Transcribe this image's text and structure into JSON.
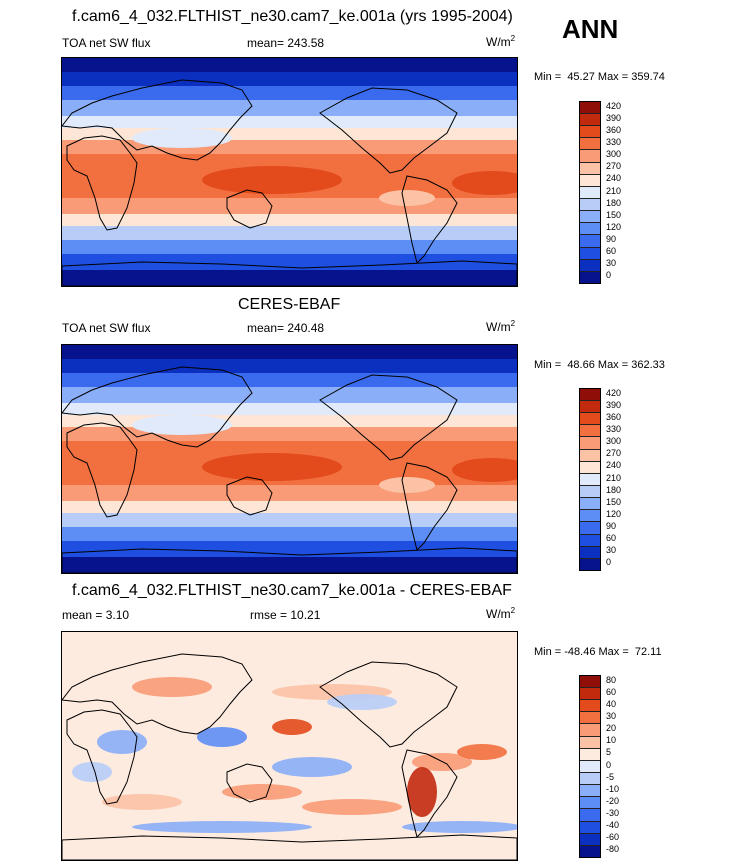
{
  "figure": {
    "season_label": "ANN",
    "units_base": "W/m",
    "units_exp": "2"
  },
  "panels": [
    {
      "title": "f.cam6_4_032.FLTHIST_ne30.cam7_ke.001a (yrs 1995-2004)",
      "left_label": "TOA net SW flux",
      "center_label": "mean= 243.58",
      "stats": "Min =  45.27 Max = 359.74",
      "levels": [
        "0",
        "30",
        "60",
        "90",
        "120",
        "150",
        "180",
        "210",
        "240",
        "270",
        "300",
        "330",
        "360",
        "390",
        "420"
      ],
      "colors": [
        "#06138c",
        "#0b2fbf",
        "#1f4fe0",
        "#3a6bef",
        "#5d8ef5",
        "#8aaef7",
        "#b7cdf8",
        "#e0eafb",
        "#fde6d6",
        "#fbc2a6",
        "#f89b76",
        "#f2703f",
        "#e34a1c",
        "#c22a0e",
        "#8f0f08"
      ],
      "map_kind": "abs"
    },
    {
      "title": "CERES-EBAF",
      "left_label": "TOA net SW flux",
      "center_label": "mean= 240.48",
      "stats": "Min =  48.66 Max = 362.33",
      "levels": [
        "0",
        "30",
        "60",
        "90",
        "120",
        "150",
        "180",
        "210",
        "240",
        "270",
        "300",
        "330",
        "360",
        "390",
        "420"
      ],
      "colors": [
        "#06138c",
        "#0b2fbf",
        "#1f4fe0",
        "#3a6bef",
        "#5d8ef5",
        "#8aaef7",
        "#b7cdf8",
        "#e0eafb",
        "#fde6d6",
        "#fbc2a6",
        "#f89b76",
        "#f2703f",
        "#e34a1c",
        "#c22a0e",
        "#8f0f08"
      ],
      "map_kind": "abs"
    },
    {
      "title": "f.cam6_4_032.FLTHIST_ne30.cam7_ke.001a - CERES-EBAF",
      "left_label": "mean =   3.10",
      "center_label": "rmse =  10.21",
      "stats": "Min = -48.46 Max =  72.11",
      "levels": [
        "-80",
        "-60",
        "-40",
        "-30",
        "-20",
        "-10",
        "-5",
        "0",
        "5",
        "10",
        "20",
        "30",
        "40",
        "60",
        "80"
      ],
      "colors": [
        "#06138c",
        "#0b2fbf",
        "#1f4fe0",
        "#3a6bef",
        "#5d8ef5",
        "#8aaef7",
        "#b7cdf8",
        "#e0eafb",
        "#fdebe0",
        "#fbc2a6",
        "#f89b76",
        "#f2703f",
        "#e34a1c",
        "#c22a0e",
        "#8f0f08"
      ],
      "map_kind": "diff"
    }
  ]
}
